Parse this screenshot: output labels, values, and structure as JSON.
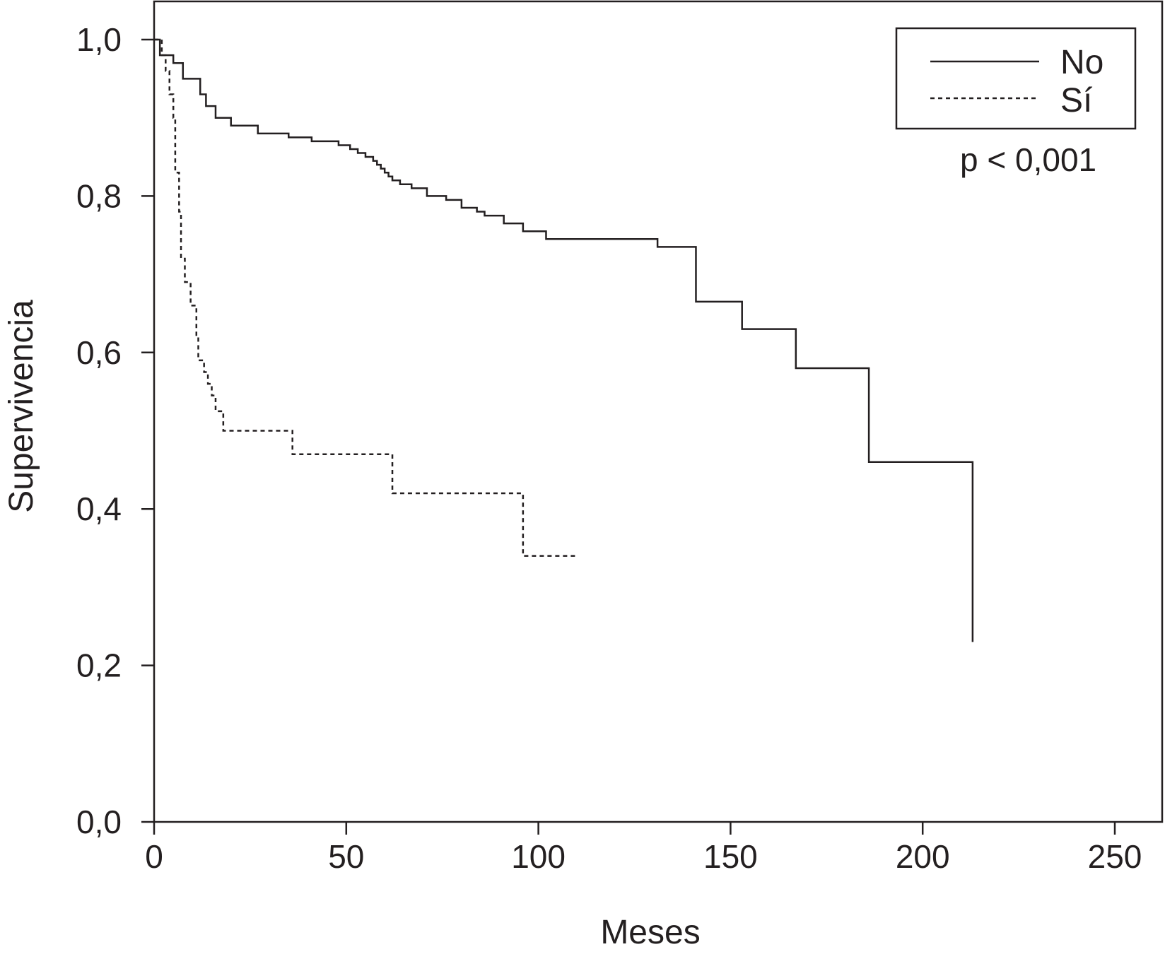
{
  "chart_data": {
    "type": "line",
    "subtype": "kaplan-meier-step",
    "title": "",
    "xlabel": "Meses",
    "ylabel": "Supervivencia",
    "xlim": [
      0,
      260
    ],
    "ylim": [
      0,
      1.0
    ],
    "x_ticks": [
      0,
      50,
      100,
      150,
      200,
      250
    ],
    "x_tick_labels": [
      "0",
      "50",
      "100",
      "150",
      "200",
      "250"
    ],
    "y_ticks": [
      0.0,
      0.2,
      0.4,
      0.6,
      0.8,
      1.0
    ],
    "y_tick_labels": [
      "0,0",
      "0,2",
      "0,4",
      "0,6",
      "0,8",
      "1,0"
    ],
    "grid": false,
    "legend_position": "top-right",
    "annotation": "p < 0,001",
    "line_color": "#231f20",
    "series": [
      {
        "name": "No",
        "style": "solid",
        "steps": [
          [
            0,
            1.0
          ],
          [
            1.5,
            0.98
          ],
          [
            5,
            0.97
          ],
          [
            7.5,
            0.95
          ],
          [
            12,
            0.93
          ],
          [
            13.5,
            0.915
          ],
          [
            16,
            0.9
          ],
          [
            20,
            0.89
          ],
          [
            27,
            0.88
          ],
          [
            35,
            0.875
          ],
          [
            41,
            0.87
          ],
          [
            48,
            0.865
          ],
          [
            51,
            0.86
          ],
          [
            53,
            0.855
          ],
          [
            55,
            0.85
          ],
          [
            57,
            0.845
          ],
          [
            58,
            0.84
          ],
          [
            59,
            0.835
          ],
          [
            60,
            0.83
          ],
          [
            61,
            0.825
          ],
          [
            62,
            0.82
          ],
          [
            64,
            0.815
          ],
          [
            67,
            0.81
          ],
          [
            71,
            0.8
          ],
          [
            76,
            0.795
          ],
          [
            80,
            0.785
          ],
          [
            84,
            0.78
          ],
          [
            86,
            0.775
          ],
          [
            91,
            0.765
          ],
          [
            96,
            0.755
          ],
          [
            102,
            0.745
          ],
          [
            131,
            0.735
          ],
          [
            141,
            0.665
          ],
          [
            153,
            0.63
          ],
          [
            167,
            0.58
          ],
          [
            186,
            0.46
          ],
          [
            213,
            0.23
          ]
        ],
        "end_x": 213
      },
      {
        "name": "Sí",
        "style": "dashed",
        "steps": [
          [
            0,
            1.0
          ],
          [
            2,
            0.98
          ],
          [
            3,
            0.96
          ],
          [
            4,
            0.93
          ],
          [
            5,
            0.9
          ],
          [
            5.5,
            0.83
          ],
          [
            6.5,
            0.78
          ],
          [
            7,
            0.72
          ],
          [
            8,
            0.69
          ],
          [
            9.5,
            0.66
          ],
          [
            11,
            0.62
          ],
          [
            11.5,
            0.59
          ],
          [
            13,
            0.575
          ],
          [
            14,
            0.56
          ],
          [
            15,
            0.545
          ],
          [
            16,
            0.525
          ],
          [
            18,
            0.5
          ],
          [
            36,
            0.47
          ],
          [
            62,
            0.42
          ],
          [
            96,
            0.34
          ]
        ],
        "end_x": 110
      }
    ]
  }
}
